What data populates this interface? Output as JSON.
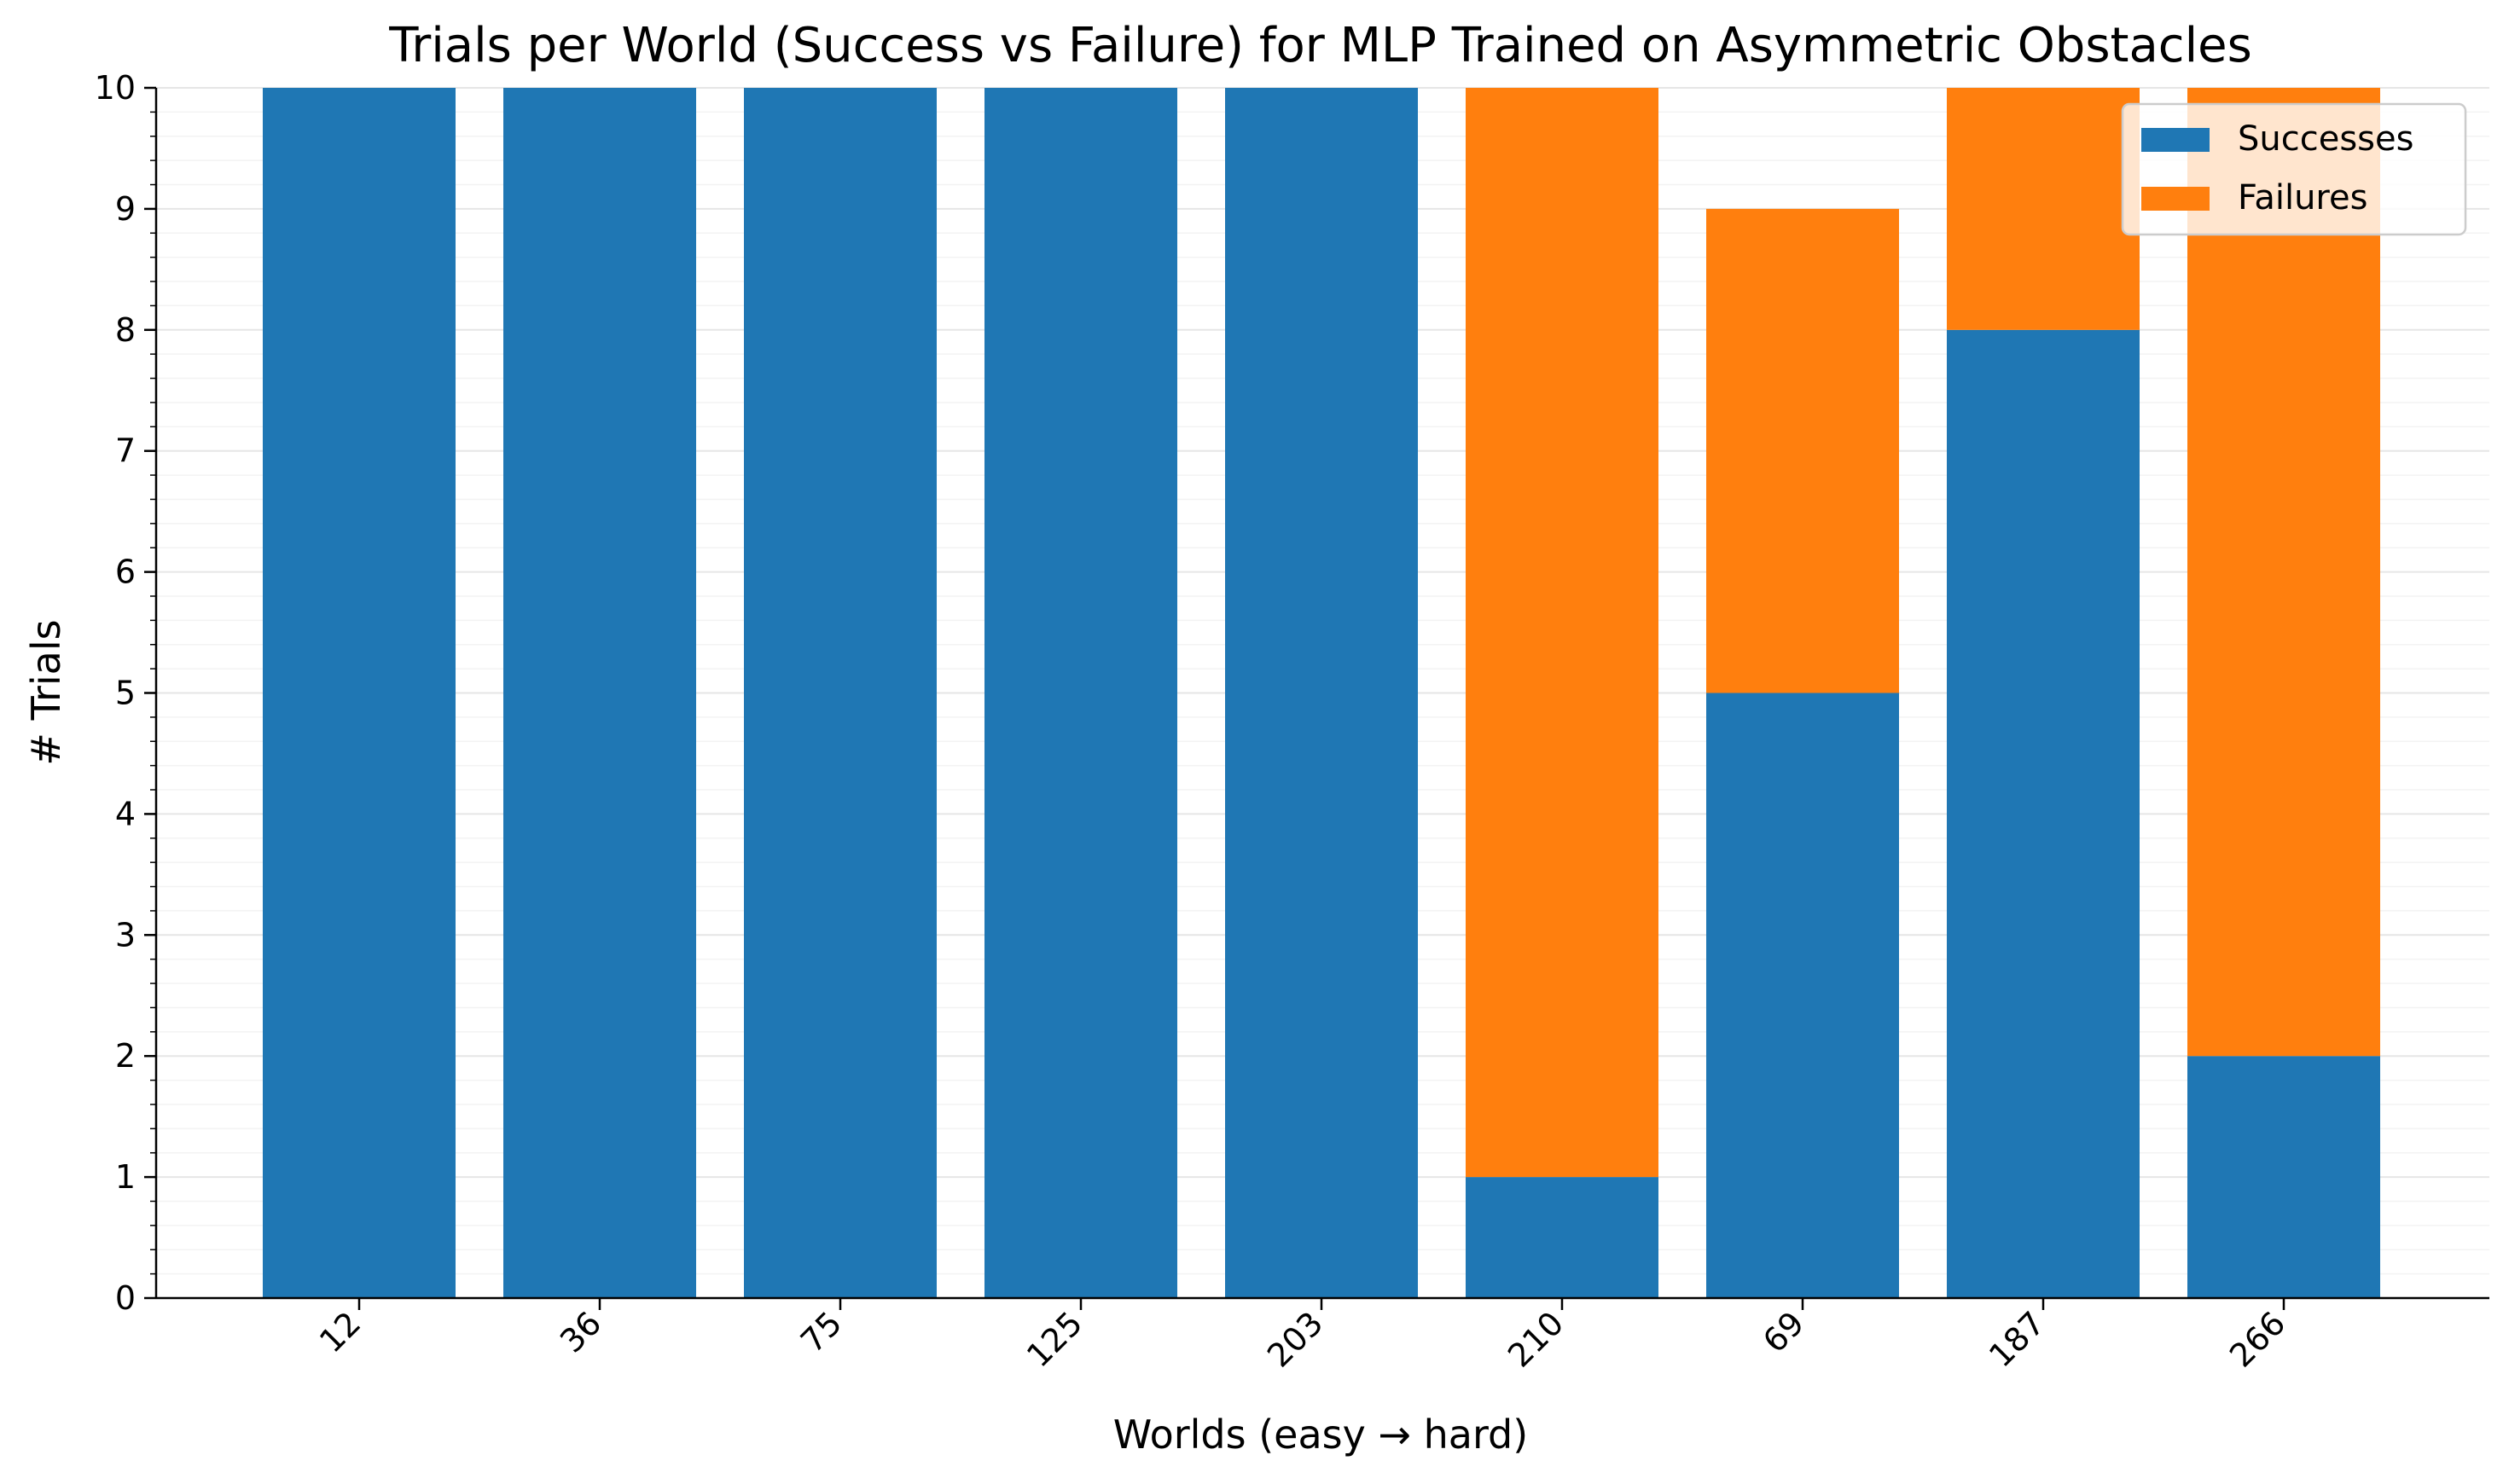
{
  "chart_data": {
    "type": "bar",
    "stacked": true,
    "title": "Trials per World (Success vs Failure) for MLP Trained on Asymmetric Obstacles",
    "xlabel": "Worlds (easy → hard)",
    "ylabel": "# Trials",
    "categories": [
      "12",
      "36",
      "75",
      "125",
      "203",
      "210",
      "69",
      "187",
      "266"
    ],
    "series": [
      {
        "name": "Successes",
        "color": "#1f77b4",
        "values": [
          10,
          10,
          10,
          10,
          10,
          1,
          5,
          8,
          2
        ]
      },
      {
        "name": "Failures",
        "color": "#ff7f0e",
        "values": [
          0,
          0,
          0,
          0,
          0,
          9,
          4,
          2,
          8
        ]
      }
    ],
    "ylim": [
      0,
      10
    ],
    "yticks": [
      0,
      1,
      2,
      3,
      4,
      5,
      6,
      7,
      8,
      9,
      10
    ],
    "grid": true,
    "legend_position": "top-right"
  }
}
